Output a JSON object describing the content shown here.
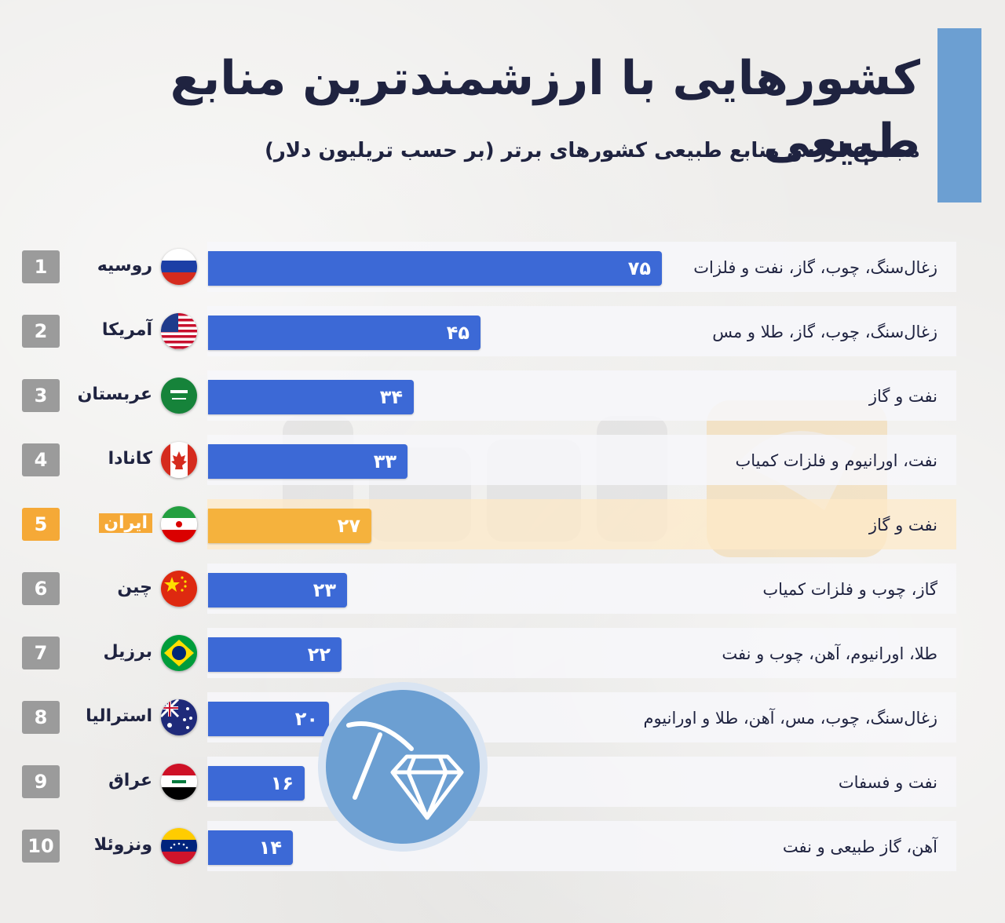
{
  "title": "کشورهایی با ارزشمندترین منابع طبیعی",
  "subtitle": "مجموع ارزش منابع طبیعی کشورهای برتر (بر حسب تریلیون دلار)",
  "colors": {
    "bar": "#3c69d6",
    "highlight": "#f5a937",
    "rank": "#9b9b9b",
    "accent": "#6c9fd2",
    "text": "#1f2340"
  },
  "icons": [
    "pickaxe-icon",
    "diamond-icon"
  ],
  "chart_data": {
    "type": "bar",
    "orientation": "horizontal",
    "highlighted_rank": "5",
    "rows": [
      {
        "rank": "1",
        "country": "روسیه",
        "value": 75,
        "value_label": "۷۵",
        "resources": "زغال‌سنگ، چوب، گاز، نفت و فلزات",
        "flag": "russia"
      },
      {
        "rank": "2",
        "country": "آمریکا",
        "value": 45,
        "value_label": "۴۵",
        "resources": "زغال‌سنگ، چوب، گاز، طلا و مس",
        "flag": "usa"
      },
      {
        "rank": "3",
        "country": "عربستان",
        "value": 34,
        "value_label": "۳۴",
        "resources": "نفت و گاز",
        "flag": "saudi"
      },
      {
        "rank": "4",
        "country": "کانادا",
        "value": 33,
        "value_label": "۳۳",
        "resources": "نفت، اورانیوم و فلزات کمیاب",
        "flag": "canada"
      },
      {
        "rank": "5",
        "country": "ایران",
        "value": 27,
        "value_label": "۲۷",
        "resources": "نفت و گاز",
        "flag": "iran"
      },
      {
        "rank": "6",
        "country": "چین",
        "value": 23,
        "value_label": "۲۳",
        "resources": "گاز، چوب و فلزات کمیاب",
        "flag": "china"
      },
      {
        "rank": "7",
        "country": "برزیل",
        "value": 22,
        "value_label": "۲۲",
        "resources": "طلا، اورانیوم، آهن، چوب و نفت",
        "flag": "brazil"
      },
      {
        "rank": "8",
        "country": "استرالیا",
        "value": 20,
        "value_label": "۲۰",
        "resources": "زغال‌سنگ، چوب، مس، آهن، طلا و اورانیوم",
        "flag": "australia"
      },
      {
        "rank": "9",
        "country": "عراق",
        "value": 16,
        "value_label": "۱۶",
        "resources": "نفت و فسفات",
        "flag": "iraq"
      },
      {
        "rank": "10",
        "country": "ونزوئلا",
        "value": 14,
        "value_label": "۱۴",
        "resources": "آهن، گاز طبیعی و نفت",
        "flag": "venezuela"
      }
    ]
  }
}
